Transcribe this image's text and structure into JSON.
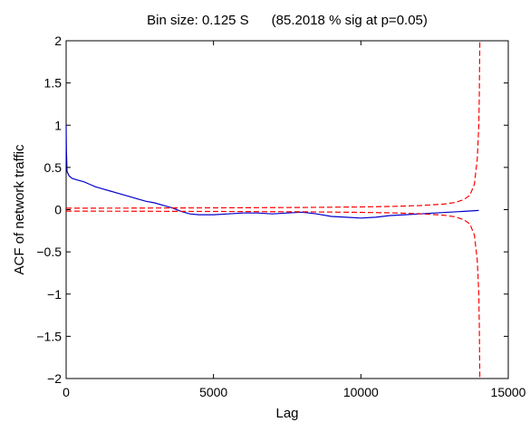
{
  "chart_data": {
    "type": "line",
    "title": "Bin size: 0.125 S      (85.2018 % sig at p=0.05)",
    "xlabel": "Lag",
    "ylabel": "ACF of network traffic",
    "xlim": [
      0,
      15000
    ],
    "ylim": [
      -2,
      2
    ],
    "xticks": [
      0,
      5000,
      10000,
      15000
    ],
    "xtick_labels": [
      "0",
      "5000",
      "10000",
      "15000"
    ],
    "yticks": [
      -2,
      -1.5,
      -1,
      -0.5,
      0,
      0.5,
      1,
      1.5,
      2
    ],
    "ytick_labels": [
      "−2",
      "−1.5",
      "−1",
      "−0.5",
      "0",
      "0.5",
      "1",
      "1.5",
      "2"
    ],
    "grid": false,
    "legend": "none",
    "series": [
      {
        "style": "solid",
        "color": "#0000cc",
        "x": [
          0,
          10,
          30,
          100,
          200,
          400,
          600,
          800,
          1000,
          1200,
          1500,
          1800,
          2100,
          2400,
          2700,
          3000,
          3300,
          3600,
          3900,
          4200,
          4500,
          5000,
          5500,
          6000,
          6500,
          7000,
          7500,
          8000,
          8500,
          9000,
          9500,
          10000,
          10500,
          11000,
          11500,
          12000,
          12500,
          13000,
          13500,
          14000
        ],
        "y": [
          1.0,
          0.7,
          0.45,
          0.4,
          0.37,
          0.35,
          0.33,
          0.3,
          0.27,
          0.25,
          0.22,
          0.19,
          0.16,
          0.13,
          0.1,
          0.08,
          0.05,
          0.02,
          -0.02,
          -0.05,
          -0.06,
          -0.06,
          -0.05,
          -0.04,
          -0.04,
          -0.05,
          -0.04,
          -0.03,
          -0.05,
          -0.08,
          -0.09,
          -0.1,
          -0.09,
          -0.07,
          -0.06,
          -0.05,
          -0.04,
          -0.03,
          -0.02,
          -0.01
        ]
      },
      {
        "style": "dashed",
        "color": "#ff0000",
        "x": [
          0,
          2000,
          4000,
          6000,
          8000,
          10000,
          11000,
          12000,
          12800,
          13200,
          13500,
          13700,
          13850,
          13950,
          14000,
          14020,
          14035
        ],
        "y": [
          0.017,
          0.018,
          0.02,
          0.022,
          0.026,
          0.032,
          0.038,
          0.048,
          0.065,
          0.085,
          0.12,
          0.17,
          0.3,
          0.6,
          1.0,
          1.4,
          2.0
        ]
      },
      {
        "style": "dashed",
        "color": "#ff0000",
        "x": [
          0,
          2000,
          4000,
          6000,
          8000,
          10000,
          11000,
          12000,
          12800,
          13200,
          13500,
          13700,
          13850,
          13950,
          14000,
          14020,
          14035
        ],
        "y": [
          -0.017,
          -0.018,
          -0.02,
          -0.022,
          -0.026,
          -0.032,
          -0.038,
          -0.048,
          -0.065,
          -0.085,
          -0.12,
          -0.17,
          -0.3,
          -0.6,
          -1.0,
          -1.4,
          -2.0
        ]
      }
    ]
  }
}
